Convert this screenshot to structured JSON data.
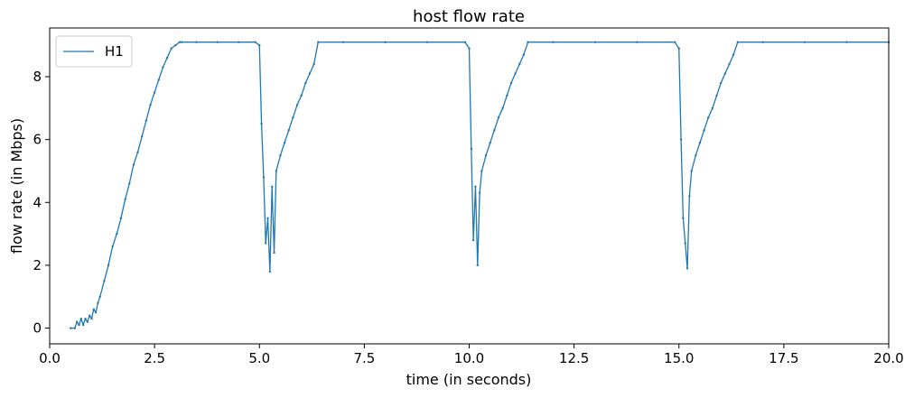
{
  "chart_data": {
    "type": "line",
    "title": "host flow rate",
    "xlabel": "time (in seconds)",
    "ylabel": "flow rate (in Mbps)",
    "xlim": [
      0,
      20
    ],
    "ylim": [
      -0.5,
      9.55
    ],
    "xticks": [
      0,
      2.5,
      5,
      7.5,
      10,
      12.5,
      15,
      17.5,
      20
    ],
    "xtick_labels": [
      "0.0",
      "2.5",
      "5.0",
      "7.5",
      "10.0",
      "12.5",
      "15.0",
      "17.5",
      "20.0"
    ],
    "yticks": [
      0,
      2,
      4,
      6,
      8
    ],
    "ytick_labels": [
      "0",
      "2",
      "4",
      "6",
      "8"
    ],
    "grid": false,
    "legend_position": "upper-left",
    "series_color": "#1f77b4",
    "series": [
      {
        "name": "H1",
        "x": [
          0.5,
          0.6,
          0.65,
          0.7,
          0.75,
          0.8,
          0.85,
          0.9,
          0.95,
          1.0,
          1.05,
          1.1,
          1.15,
          1.2,
          1.3,
          1.4,
          1.5,
          1.6,
          1.7,
          1.8,
          1.9,
          2.0,
          2.1,
          2.2,
          2.3,
          2.4,
          2.5,
          2.6,
          2.7,
          2.8,
          2.9,
          3.0,
          3.1,
          3.15,
          3.5,
          4.0,
          4.5,
          4.9,
          5.0,
          5.05,
          5.1,
          5.15,
          5.2,
          5.25,
          5.3,
          5.35,
          5.4,
          5.5,
          5.6,
          5.7,
          5.8,
          5.9,
          6.0,
          6.1,
          6.2,
          6.3,
          6.4,
          7.0,
          8.0,
          9.0,
          9.9,
          10.0,
          10.05,
          10.1,
          10.15,
          10.2,
          10.25,
          10.3,
          10.4,
          10.5,
          10.6,
          10.7,
          10.8,
          10.9,
          11.0,
          11.1,
          11.2,
          11.3,
          11.4,
          12.0,
          13.0,
          14.0,
          14.9,
          15.0,
          15.05,
          15.1,
          15.15,
          15.2,
          15.25,
          15.3,
          15.4,
          15.5,
          15.6,
          15.7,
          15.8,
          15.9,
          16.0,
          16.1,
          16.2,
          16.3,
          16.4,
          17.0,
          18.0,
          19.0,
          20.0
        ],
        "y": [
          0,
          0,
          0.2,
          0.1,
          0.3,
          0.1,
          0.3,
          0.2,
          0.4,
          0.3,
          0.6,
          0.5,
          0.8,
          1.0,
          1.5,
          2.0,
          2.6,
          3.0,
          3.5,
          4.1,
          4.6,
          5.2,
          5.6,
          6.1,
          6.6,
          7.1,
          7.5,
          7.9,
          8.3,
          8.6,
          8.9,
          9.0,
          9.1,
          9.1,
          9.1,
          9.1,
          9.1,
          9.1,
          9.0,
          6.5,
          4.8,
          2.7,
          3.5,
          1.8,
          4.5,
          2.4,
          5.0,
          5.5,
          5.9,
          6.3,
          6.7,
          7.1,
          7.4,
          7.8,
          8.1,
          8.4,
          9.1,
          9.1,
          9.1,
          9.1,
          9.1,
          8.9,
          5.7,
          2.8,
          4.5,
          2.0,
          4.3,
          5.0,
          5.5,
          5.9,
          6.3,
          6.7,
          7.0,
          7.4,
          7.8,
          8.1,
          8.4,
          8.7,
          9.1,
          9.1,
          9.1,
          9.1,
          9.1,
          8.9,
          6.0,
          3.5,
          2.7,
          1.9,
          4.2,
          5.0,
          5.5,
          5.9,
          6.3,
          6.7,
          7.0,
          7.4,
          7.8,
          8.1,
          8.4,
          8.7,
          9.1,
          9.1,
          9.1,
          9.1,
          9.1
        ]
      }
    ]
  }
}
